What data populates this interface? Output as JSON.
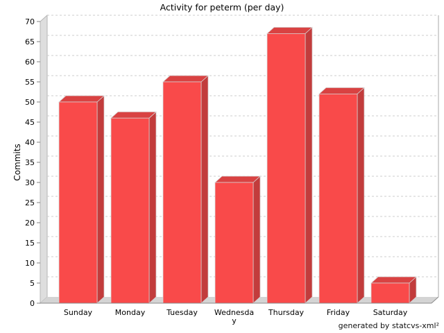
{
  "title": "Activity for peterm (per day)",
  "footer": "generated by statcvs-xml²",
  "chart_data": {
    "type": "bar",
    "style": "3d-bars",
    "title": "Activity for peterm (per day)",
    "xlabel": "",
    "ylabel": "Commits",
    "categories": [
      "Sunday",
      "Monday",
      "Tuesday",
      "Wednesday",
      "Thursday",
      "Friday",
      "Saturday"
    ],
    "values": [
      50,
      46,
      55,
      30,
      67,
      52,
      5
    ],
    "ylim": [
      0,
      70
    ],
    "ytick_step": 5,
    "grid": "horizontal-dashed",
    "legend": "none",
    "colors": {
      "bar_front": "#f94a4a",
      "bar_top": "#d94242",
      "bar_side": "#c23c3c",
      "bar_outline": "#d6d6d6",
      "wall": "#dedede",
      "floor": "#d4d4d4",
      "wall_edge": "#b5b5b5",
      "floor_front_edge": "#8a8a8a",
      "gridline": "#cccccc",
      "tick": "#808080",
      "plot_right_edge": "#aaaaaa"
    }
  }
}
